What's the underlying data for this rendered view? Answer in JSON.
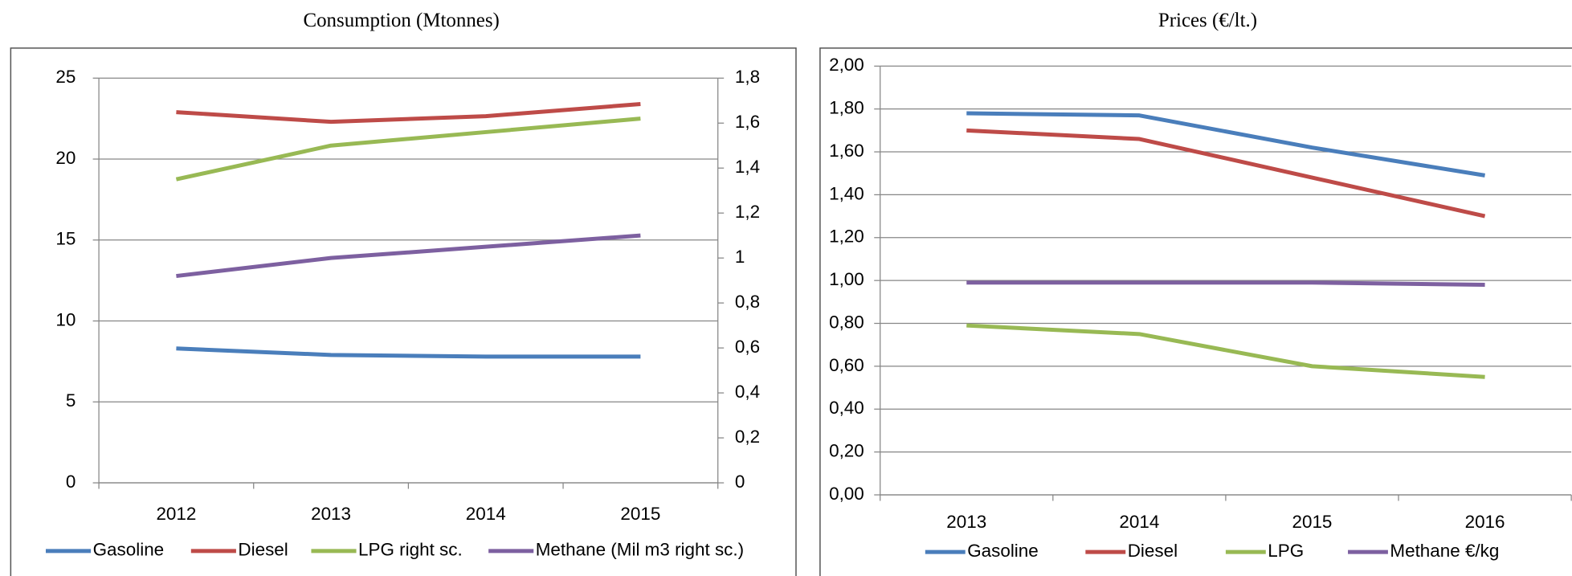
{
  "chart_data": [
    {
      "type": "line",
      "title": "Consumption (Mtonnes)",
      "categories": [
        "2012",
        "2013",
        "2014",
        "2015"
      ],
      "ylim": [
        0,
        25
      ],
      "yticks": [
        0,
        5,
        10,
        15,
        20,
        25
      ],
      "y2lim": [
        0,
        1.8
      ],
      "y2ticks": [
        0,
        {
          "value": 0.2,
          "label": "0,2"
        },
        {
          "value": 0.4,
          "label": "0,4"
        },
        {
          "value": 0.6,
          "label": "0,6"
        },
        {
          "value": 0.8,
          "label": "0,8"
        },
        1,
        {
          "value": 1.2,
          "label": "1,2"
        },
        {
          "value": 1.4,
          "label": "1,4"
        },
        {
          "value": 1.6,
          "label": "1,6"
        },
        {
          "value": 1.8,
          "label": "1,8"
        }
      ],
      "grid": true,
      "series": [
        {
          "name": "Gasoline",
          "color": "#4a7ebb",
          "values": [
            8.3,
            7.9,
            7.8,
            7.8
          ]
        },
        {
          "name": "Diesel",
          "color": "#be4b48",
          "values": [
            22.9,
            22.3,
            22.65,
            23.4
          ]
        },
        {
          "name": "LPG right sc.",
          "color": "#98b954",
          "axis": "y2",
          "values": [
            1.35,
            1.5,
            1.56,
            1.62
          ]
        },
        {
          "name": "Methane (Mil m3 right sc.)",
          "color": "#7d60a0",
          "axis": "y2",
          "values": [
            0.92,
            1.0,
            1.05,
            1.1
          ]
        }
      ]
    },
    {
      "type": "line",
      "title": "Prices (€/lt.)",
      "categories": [
        "2013",
        "2014",
        "2015",
        "2016"
      ],
      "ylim": [
        0,
        2
      ],
      "yticks": [
        {
          "value": 0,
          "label": "0,00"
        },
        {
          "value": 0.2,
          "label": "0,20"
        },
        {
          "value": 0.4,
          "label": "0,40"
        },
        {
          "value": 0.6,
          "label": "0,60"
        },
        {
          "value": 0.8,
          "label": "0,80"
        },
        {
          "value": 1,
          "label": "1,00"
        },
        {
          "value": 1.2,
          "label": "1,20"
        },
        {
          "value": 1.4,
          "label": "1,40"
        },
        {
          "value": 1.6,
          "label": "1,60"
        },
        {
          "value": 1.8,
          "label": "1,80"
        },
        {
          "value": 2,
          "label": "2,00"
        }
      ],
      "grid": true,
      "series": [
        {
          "name": "Gasoline",
          "color": "#4a7ebb",
          "values": [
            1.78,
            1.77,
            1.62,
            1.49
          ]
        },
        {
          "name": "Diesel",
          "color": "#be4b48",
          "values": [
            1.7,
            1.66,
            1.48,
            1.3
          ]
        },
        {
          "name": "LPG",
          "color": "#98b954",
          "values": [
            0.79,
            0.75,
            0.6,
            0.55
          ]
        },
        {
          "name": "Methane €/kg",
          "color": "#7d60a0",
          "values": [
            0.99,
            0.99,
            0.99,
            0.98
          ]
        }
      ]
    }
  ]
}
